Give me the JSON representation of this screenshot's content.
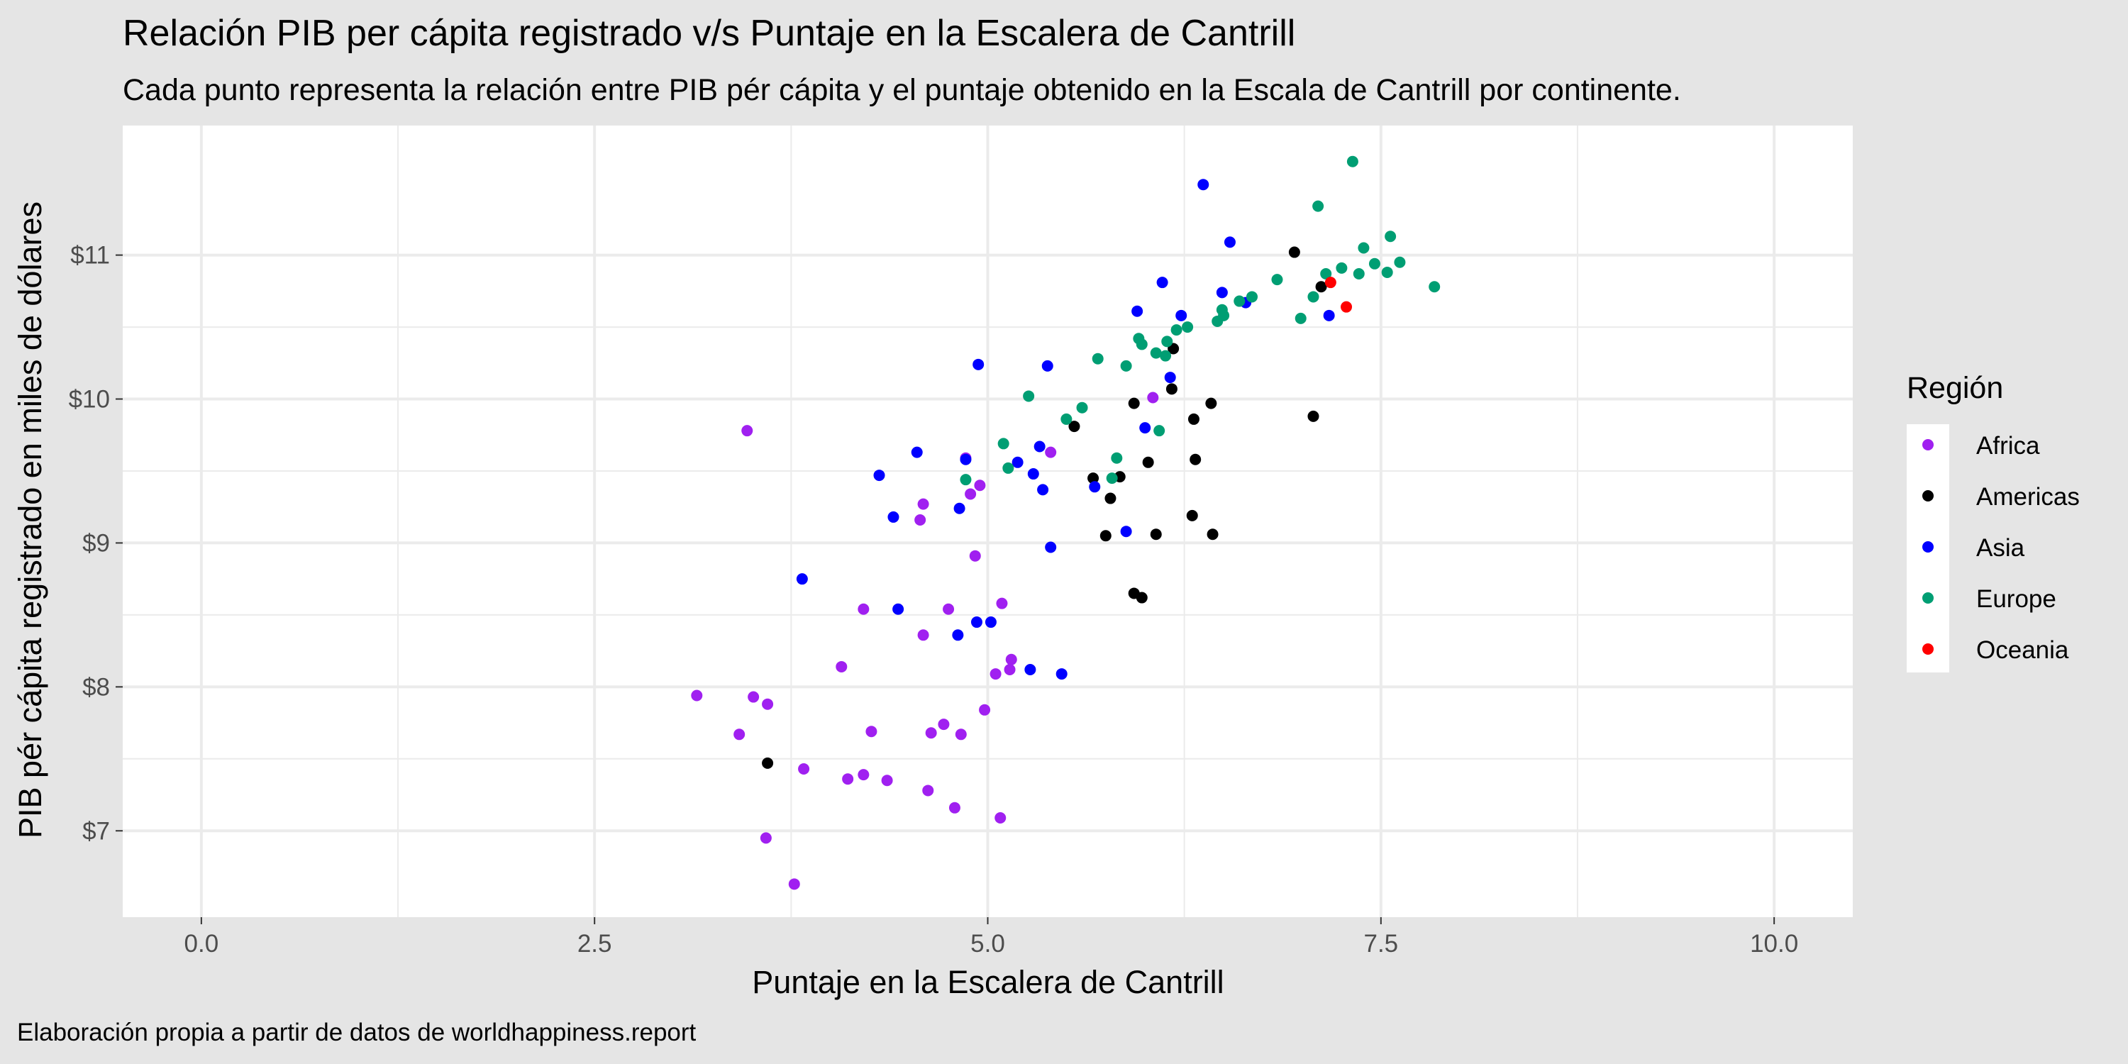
{
  "chart_data": {
    "type": "scatter",
    "title": "Relación PIB per cápita registrado v/s Puntaje en la Escalera de Cantrill",
    "subtitle": "Cada punto representa la relación entre PIB pér cápita y el puntaje obtenido en la Escala de Cantrill por continente.",
    "xlabel": "Puntaje en la Escalera de Cantrill",
    "ylabel": "PIB pér cápita registrado en miles de dólares",
    "caption": "Elaboración propia a partir de datos de worldhappiness.report",
    "xlim": [
      -0.5,
      10.5
    ],
    "ylim": [
      6.4,
      11.9
    ],
    "x_ticks": [
      {
        "value": 0,
        "label": "0.0"
      },
      {
        "value": 2.5,
        "label": "2.5"
      },
      {
        "value": 5,
        "label": "5.0"
      },
      {
        "value": 7.5,
        "label": "7.5"
      },
      {
        "value": 10,
        "label": "10.0"
      }
    ],
    "y_ticks": [
      {
        "value": 7,
        "label": "$7"
      },
      {
        "value": 8,
        "label": "$8"
      },
      {
        "value": 9,
        "label": "$9"
      },
      {
        "value": 10,
        "label": "$10"
      },
      {
        "value": 11,
        "label": "$11"
      }
    ],
    "grid": true,
    "background": "#FFFFFF",
    "grid_color": "#EBEBEB",
    "legend": {
      "title": "Región",
      "position": "right"
    },
    "series": [
      {
        "name": "Africa",
        "color": "#A020F0",
        "points": [
          [
            3.47,
            9.78
          ],
          [
            3.15,
            7.94
          ],
          [
            3.42,
            7.67
          ],
          [
            3.51,
            7.93
          ],
          [
            3.6,
            7.88
          ],
          [
            3.59,
            6.95
          ],
          [
            3.77,
            6.63
          ],
          [
            3.83,
            7.43
          ],
          [
            4.07,
            8.14
          ],
          [
            4.11,
            7.36
          ],
          [
            4.21,
            7.39
          ],
          [
            4.21,
            8.54
          ],
          [
            4.26,
            7.69
          ],
          [
            4.36,
            7.35
          ],
          [
            4.57,
            9.16
          ],
          [
            4.59,
            9.27
          ],
          [
            4.59,
            8.36
          ],
          [
            4.62,
            7.28
          ],
          [
            4.64,
            7.68
          ],
          [
            4.72,
            7.74
          ],
          [
            4.75,
            8.54
          ],
          [
            4.79,
            7.16
          ],
          [
            4.83,
            7.67
          ],
          [
            4.86,
            9.59
          ],
          [
            4.89,
            9.34
          ],
          [
            4.92,
            8.91
          ],
          [
            4.95,
            9.4
          ],
          [
            4.98,
            7.84
          ],
          [
            5.05,
            8.09
          ],
          [
            5.08,
            7.09
          ],
          [
            5.09,
            8.58
          ],
          [
            5.14,
            8.12
          ],
          [
            5.15,
            8.19
          ],
          [
            5.4,
            9.63
          ],
          [
            6.05,
            10.01
          ]
        ]
      },
      {
        "name": "Americas",
        "color": "#000000",
        "points": [
          [
            3.6,
            7.47
          ],
          [
            5.55,
            9.81
          ],
          [
            5.67,
            9.45
          ],
          [
            5.75,
            9.05
          ],
          [
            5.78,
            9.31
          ],
          [
            5.84,
            9.46
          ],
          [
            5.93,
            9.97
          ],
          [
            5.93,
            8.65
          ],
          [
            5.98,
            8.62
          ],
          [
            6.02,
            9.56
          ],
          [
            6.07,
            9.06
          ],
          [
            6.17,
            10.07
          ],
          [
            6.18,
            10.35
          ],
          [
            6.3,
            9.19
          ],
          [
            6.31,
            9.86
          ],
          [
            6.32,
            9.58
          ],
          [
            6.42,
            9.97
          ],
          [
            6.43,
            9.06
          ],
          [
            6.95,
            11.02
          ],
          [
            7.07,
            9.88
          ],
          [
            7.12,
            10.78
          ]
        ]
      },
      {
        "name": "Asia",
        "color": "#0000FF",
        "points": [
          [
            3.82,
            8.75
          ],
          [
            4.31,
            9.47
          ],
          [
            4.4,
            9.18
          ],
          [
            4.43,
            8.54
          ],
          [
            4.55,
            9.63
          ],
          [
            4.81,
            8.36
          ],
          [
            4.82,
            9.24
          ],
          [
            4.86,
            9.58
          ],
          [
            4.93,
            8.45
          ],
          [
            4.94,
            10.24
          ],
          [
            5.02,
            8.45
          ],
          [
            5.19,
            9.56
          ],
          [
            5.27,
            8.12
          ],
          [
            5.29,
            9.48
          ],
          [
            5.33,
            9.67
          ],
          [
            5.35,
            9.37
          ],
          [
            5.38,
            10.23
          ],
          [
            5.4,
            8.97
          ],
          [
            5.47,
            8.09
          ],
          [
            5.68,
            9.39
          ],
          [
            5.88,
            9.08
          ],
          [
            5.95,
            10.61
          ],
          [
            6.0,
            9.8
          ],
          [
            6.11,
            10.81
          ],
          [
            6.16,
            10.15
          ],
          [
            6.23,
            10.58
          ],
          [
            6.37,
            11.49
          ],
          [
            6.49,
            10.74
          ],
          [
            6.54,
            11.09
          ],
          [
            6.64,
            10.67
          ],
          [
            7.17,
            10.58
          ]
        ]
      },
      {
        "name": "Europe",
        "color": "#009E73",
        "points": [
          [
            4.86,
            9.44
          ],
          [
            5.1,
            9.69
          ],
          [
            5.13,
            9.52
          ],
          [
            5.26,
            10.02
          ],
          [
            5.5,
            9.86
          ],
          [
            5.6,
            9.94
          ],
          [
            5.7,
            10.28
          ],
          [
            5.79,
            9.45
          ],
          [
            5.82,
            9.59
          ],
          [
            5.88,
            10.23
          ],
          [
            5.96,
            10.42
          ],
          [
            5.98,
            10.38
          ],
          [
            6.07,
            10.32
          ],
          [
            6.09,
            9.78
          ],
          [
            6.13,
            10.3
          ],
          [
            6.14,
            10.4
          ],
          [
            6.2,
            10.48
          ],
          [
            6.27,
            10.5
          ],
          [
            6.46,
            10.54
          ],
          [
            6.49,
            10.62
          ],
          [
            6.5,
            10.58
          ],
          [
            6.6,
            10.68
          ],
          [
            6.68,
            10.71
          ],
          [
            6.84,
            10.83
          ],
          [
            6.99,
            10.56
          ],
          [
            7.07,
            10.71
          ],
          [
            7.1,
            11.34
          ],
          [
            7.15,
            10.87
          ],
          [
            7.25,
            10.91
          ],
          [
            7.32,
            11.65
          ],
          [
            7.36,
            10.87
          ],
          [
            7.39,
            11.05
          ],
          [
            7.46,
            10.94
          ],
          [
            7.54,
            10.88
          ],
          [
            7.56,
            11.13
          ],
          [
            7.62,
            10.95
          ],
          [
            7.84,
            10.78
          ]
        ]
      },
      {
        "name": "Oceania",
        "color": "#FF0000",
        "points": [
          [
            7.18,
            10.81
          ],
          [
            7.28,
            10.64
          ]
        ]
      }
    ]
  }
}
